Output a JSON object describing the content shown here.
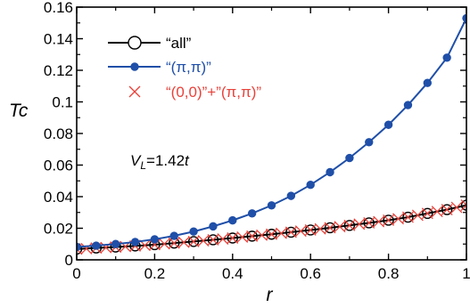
{
  "chart_data": {
    "type": "line",
    "title": "",
    "xlabel": "r",
    "ylabel": "Tc",
    "xlim": [
      0,
      1
    ],
    "ylim": [
      0,
      0.16
    ],
    "x_ticks": [
      "0",
      "0.2",
      "0.4",
      "0.6",
      "0.8",
      "1"
    ],
    "y_ticks": [
      "0",
      "0.02",
      "0.04",
      "0.06",
      "0.08",
      "0.1",
      "0.12",
      "0.14",
      "0.16"
    ],
    "annotation": {
      "v": "V",
      "sub": "L",
      "rest": "=1.42",
      "t": "t"
    },
    "legend_position": "top-left",
    "series": [
      {
        "name": "“all”",
        "color": "#000000",
        "marker": "open-circle",
        "x": [
          0,
          0.05,
          0.1,
          0.15,
          0.2,
          0.25,
          0.3,
          0.35,
          0.4,
          0.45,
          0.5,
          0.55,
          0.6,
          0.65,
          0.7,
          0.75,
          0.8,
          0.85,
          0.9,
          0.95,
          1.0
        ],
        "y": [
          0.0068,
          0.0075,
          0.0081,
          0.0088,
          0.0096,
          0.0106,
          0.0116,
          0.0127,
          0.0138,
          0.015,
          0.0162,
          0.0175,
          0.0189,
          0.0203,
          0.0218,
          0.0234,
          0.0251,
          0.027,
          0.0294,
          0.0318,
          0.0346
        ]
      },
      {
        "name": "“(π,π)”",
        "color": "#1f4fa8",
        "marker": "filled-circle",
        "x": [
          0,
          0.05,
          0.1,
          0.15,
          0.2,
          0.25,
          0.3,
          0.35,
          0.4,
          0.45,
          0.5,
          0.55,
          0.6,
          0.65,
          0.7,
          0.75,
          0.8,
          0.85,
          0.9,
          0.95,
          1.0
        ],
        "y": [
          0.0082,
          0.009,
          0.01,
          0.0113,
          0.013,
          0.0152,
          0.0179,
          0.0212,
          0.025,
          0.0294,
          0.0345,
          0.0405,
          0.0475,
          0.0555,
          0.0645,
          0.0745,
          0.0855,
          0.098,
          0.112,
          0.128,
          0.153
        ]
      },
      {
        "name": "“(0,0)”+”(π,π)”",
        "color": "#e8423a",
        "marker": "x",
        "x": [
          0,
          0.025,
          0.05,
          0.075,
          0.1,
          0.125,
          0.15,
          0.175,
          0.2,
          0.225,
          0.25,
          0.275,
          0.3,
          0.325,
          0.35,
          0.375,
          0.4,
          0.425,
          0.45,
          0.475,
          0.5,
          0.525,
          0.55,
          0.575,
          0.6,
          0.625,
          0.65,
          0.675,
          0.7,
          0.725,
          0.75,
          0.775,
          0.8,
          0.825,
          0.85,
          0.875,
          0.9,
          0.925,
          0.95,
          0.975,
          1.0
        ],
        "y": [
          0.0068,
          0.0071,
          0.0075,
          0.0078,
          0.0081,
          0.0084,
          0.0088,
          0.0092,
          0.0096,
          0.0101,
          0.0106,
          0.0111,
          0.0116,
          0.0121,
          0.0127,
          0.0132,
          0.0138,
          0.0144,
          0.015,
          0.0156,
          0.0162,
          0.0168,
          0.0175,
          0.0182,
          0.0189,
          0.0196,
          0.0203,
          0.021,
          0.0218,
          0.0226,
          0.0234,
          0.0242,
          0.0251,
          0.026,
          0.027,
          0.0282,
          0.0294,
          0.0306,
          0.0318,
          0.0332,
          0.0346
        ]
      }
    ]
  }
}
